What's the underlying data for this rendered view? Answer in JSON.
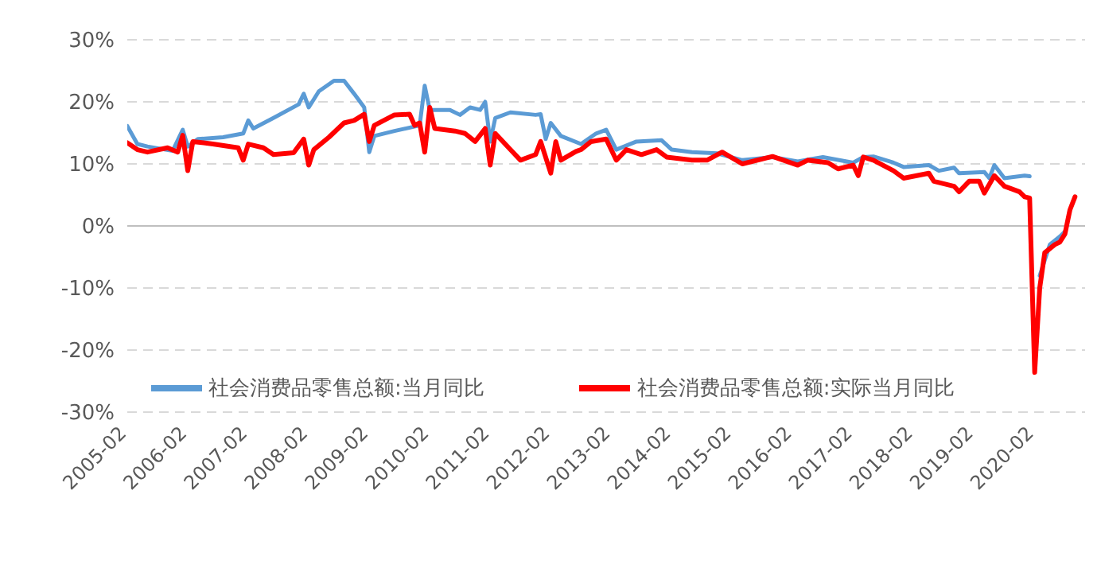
{
  "chart_data": {
    "type": "line",
    "xlim": [
      "2005-02",
      "2020-12"
    ],
    "xticks": [
      "2005-02",
      "2006-02",
      "2007-02",
      "2008-02",
      "2009-02",
      "2010-02",
      "2011-02",
      "2012-02",
      "2013-02",
      "2014-02",
      "2015-02",
      "2016-02",
      "2017-02",
      "2018-02",
      "2019-02",
      "2020-02"
    ],
    "ylim": [
      -30,
      30
    ],
    "yticks": [
      {
        "value": -30,
        "label": "-30%"
      },
      {
        "value": -20,
        "label": "-20%"
      },
      {
        "value": -10,
        "label": "-10%"
      },
      {
        "value": 0,
        "label": "0%"
      },
      {
        "value": 10,
        "label": "10%"
      },
      {
        "value": 20,
        "label": "20%"
      },
      {
        "value": 30,
        "label": "30%"
      }
    ],
    "grid": "y",
    "legend": "bottom",
    "marker": "none",
    "line_style": "solid",
    "series": [
      {
        "name": "社会消费品零售总额:当月同比",
        "color": "#5b9bd5",
        "x": [
          "2005-02",
          "2005-04",
          "2005-06",
          "2005-11",
          "2006-01",
          "2006-02",
          "2006-04",
          "2006-09",
          "2007-01",
          "2007-02",
          "2007-03",
          "2007-07",
          "2007-12",
          "2008-01",
          "2008-02",
          "2008-04",
          "2008-07",
          "2008-09",
          "2008-11",
          "2009-01",
          "2009-02",
          "2009-03",
          "2009-07",
          "2009-12",
          "2010-01",
          "2010-02",
          "2010-06",
          "2010-08",
          "2010-10",
          "2010-12",
          "2011-01",
          "2011-02",
          "2011-03",
          "2011-06",
          "2011-11",
          "2011-12",
          "2012-01",
          "2012-02",
          "2012-04",
          "2012-08",
          "2012-11",
          "2013-01",
          "2013-03",
          "2013-07",
          "2013-12",
          "2014-02",
          "2014-06",
          "2014-11",
          "2015-04",
          "2015-10",
          "2016-03",
          "2016-08",
          "2017-02",
          "2017-04",
          "2017-06",
          "2017-10",
          "2017-12",
          "2018-05",
          "2018-07",
          "2018-10",
          "2018-11",
          "2019-04",
          "2019-05",
          "2019-06",
          "2019-08",
          "2019-12",
          "2020-01",
          "2020-02",
          "2020-03",
          "2020-05",
          "2020-07",
          "2020-08"
        ],
        "values": [
          16.1,
          13.2,
          12.8,
          12.1,
          15.5,
          12.8,
          14.0,
          14.3,
          14.9,
          17.0,
          15.7,
          17.4,
          19.6,
          21.3,
          19.1,
          21.7,
          23.4,
          23.4,
          21.3,
          19.1,
          11.9,
          14.5,
          15.3,
          16.2,
          22.6,
          18.7,
          18.7,
          17.9,
          19.1,
          18.7,
          20.0,
          13.6,
          17.4,
          18.3,
          17.9,
          18.0,
          14.0,
          16.6,
          14.5,
          13.2,
          14.9,
          15.5,
          12.3,
          13.6,
          13.8,
          12.3,
          11.9,
          11.7,
          10.6,
          11.1,
          10.4,
          11.1,
          10.2,
          11.1,
          11.2,
          10.2,
          9.5,
          9.8,
          8.9,
          9.4,
          8.5,
          8.7,
          7.7,
          9.8,
          7.7,
          8.1,
          8.0,
          null,
          -8,
          -3.0,
          -1.7,
          -0.9
        ]
      },
      {
        "name": "社会消费品零售总额:实际当月同比",
        "color": "#ff0000",
        "x": [
          "2005-02",
          "2005-04",
          "2005-06",
          "2005-10",
          "2005-12",
          "2006-01",
          "2006-02",
          "2006-03",
          "2006-07",
          "2006-12",
          "2007-01",
          "2007-02",
          "2007-05",
          "2007-07",
          "2007-11",
          "2008-01",
          "2008-02",
          "2008-03",
          "2008-06",
          "2008-09",
          "2008-11",
          "2009-01",
          "2009-02",
          "2009-03",
          "2009-07",
          "2009-10",
          "2009-11",
          "2009-12",
          "2010-01",
          "2010-02",
          "2010-03",
          "2010-07",
          "2010-09",
          "2010-11",
          "2011-01",
          "2011-02",
          "2011-03",
          "2011-06",
          "2011-08",
          "2011-11",
          "2011-12",
          "2012-02",
          "2012-03",
          "2012-04",
          "2012-07",
          "2012-08",
          "2012-10",
          "2013-01",
          "2013-03",
          "2013-05",
          "2013-08",
          "2013-11",
          "2014-01",
          "2014-06",
          "2014-09",
          "2014-12",
          "2015-04",
          "2015-10",
          "2016-03",
          "2016-05",
          "2016-09",
          "2016-11",
          "2017-02",
          "2017-03",
          "2017-04",
          "2017-06",
          "2017-10",
          "2017-12",
          "2018-05",
          "2018-06",
          "2018-10",
          "2018-11",
          "2019-01",
          "2019-03",
          "2019-04",
          "2019-06",
          "2019-08",
          "2019-11",
          "2019-12",
          "2020-01",
          "2020-02",
          "2020-03",
          "2020-04",
          "2020-06",
          "2020-07",
          "2020-08",
          "2020-09",
          "2020-10"
        ],
        "values": [
          13.4,
          12.3,
          11.9,
          12.6,
          11.9,
          14.6,
          8.9,
          13.6,
          13.2,
          12.6,
          10.6,
          13.2,
          12.6,
          11.5,
          11.8,
          14.0,
          9.8,
          12.3,
          14.3,
          16.6,
          17.0,
          18.0,
          13.6,
          16.2,
          17.9,
          18.0,
          16.2,
          16.6,
          11.9,
          19.1,
          15.7,
          15.3,
          14.9,
          13.6,
          15.7,
          9.8,
          14.9,
          12.3,
          10.6,
          11.5,
          13.6,
          8.5,
          13.6,
          10.6,
          12.0,
          12.3,
          13.6,
          14.0,
          10.6,
          12.3,
          11.5,
          12.3,
          11.1,
          10.6,
          10.6,
          11.9,
          10.0,
          11.2,
          9.8,
          10.6,
          10.2,
          9.2,
          9.8,
          8.1,
          11.1,
          10.6,
          8.9,
          7.7,
          8.5,
          7.2,
          6.4,
          5.5,
          7.2,
          7.2,
          5.3,
          8.1,
          6.4,
          5.5,
          4.7,
          4.5,
          -23.6,
          -10,
          -4.3,
          -3.0,
          -2.6,
          -1.3,
          2.6,
          4.7
        ]
      }
    ]
  }
}
